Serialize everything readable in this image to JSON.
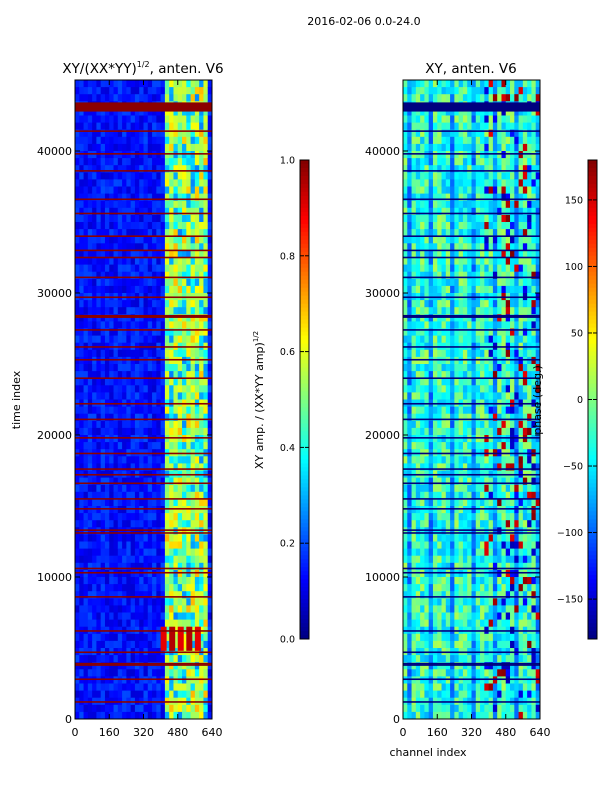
{
  "figure": {
    "suptitle": "2016-02-06 0.0-24.0"
  },
  "chart_data": [
    {
      "type": "heatmap",
      "title": "XY/(XX*YY)",
      "title_superscript": "1/2",
      "title_suffix": ", anten. V6",
      "xlabel": "",
      "ylabel": "time index",
      "xlim": [
        0,
        640
      ],
      "ylim": [
        0,
        45000
      ],
      "x_ticks": [
        0,
        160,
        320,
        480,
        640
      ],
      "y_ticks": [
        0,
        10000,
        20000,
        30000,
        40000
      ],
      "y_tick_labels": [
        "0",
        "10000",
        "20000",
        "30000",
        "40000"
      ],
      "colormap": "jet",
      "background_value": 0.12,
      "flagged_rows": [
        1200,
        2800,
        3800,
        3900,
        4700,
        6200,
        8600,
        10300,
        10600,
        13100,
        13300,
        14800,
        15500,
        16600,
        17200,
        17600,
        18700,
        19800,
        21100,
        22200,
        24000,
        25300,
        26200,
        27400,
        28300,
        28400,
        29700,
        31100,
        32500,
        33000,
        34000,
        35600,
        36600,
        38600,
        39800,
        41400,
        42900,
        43100,
        43300
      ],
      "bright_band": {
        "x_range": [
          420,
          620
        ],
        "value": 0.55
      },
      "hot_patch": {
        "x_range": [
          400,
          600
        ],
        "y_range": [
          4800,
          6500
        ],
        "value": 0.9
      },
      "colorbar": {
        "label": "XY amp. / (XX*YY amp)",
        "label_superscript": "1/2",
        "range": [
          0.0,
          1.0
        ],
        "ticks": [
          "0.0",
          "0.2",
          "0.4",
          "0.6",
          "0.8",
          "1.0"
        ],
        "tick_values": [
          0.0,
          0.2,
          0.4,
          0.6,
          0.8,
          1.0
        ]
      }
    },
    {
      "type": "heatmap",
      "title": "XY, anten. V6",
      "xlabel": "channel index",
      "ylabel": "",
      "xlim": [
        0,
        640
      ],
      "ylim": [
        0,
        45000
      ],
      "x_ticks": [
        0,
        160,
        320,
        480,
        640
      ],
      "y_ticks": [
        0,
        10000,
        20000,
        30000,
        40000
      ],
      "y_tick_labels": [
        "0",
        "10000",
        "20000",
        "30000",
        "40000"
      ],
      "colormap": "jet",
      "background_value": 0.45,
      "flagged_rows": [
        1200,
        2800,
        3800,
        3900,
        4700,
        6200,
        8600,
        10300,
        10600,
        13100,
        13300,
        14800,
        15500,
        16600,
        17200,
        17600,
        18700,
        19800,
        21100,
        22200,
        24000,
        25300,
        26200,
        27400,
        28300,
        28400,
        29700,
        31100,
        32500,
        33000,
        34000,
        35600,
        36600,
        38600,
        39800,
        41400,
        42900,
        43100,
        43300
      ],
      "colorbar": {
        "label": "phase (deg.)",
        "range": [
          -180,
          180
        ],
        "ticks": [
          "−150",
          "−100",
          "−50",
          "0",
          "50",
          "100",
          "150"
        ],
        "tick_values": [
          -150,
          -100,
          -50,
          0,
          50,
          100,
          150
        ]
      }
    }
  ],
  "colors": {
    "frame": "#000000",
    "flag_row_left": "#8b0000",
    "flag_row_right": "#00007f"
  }
}
